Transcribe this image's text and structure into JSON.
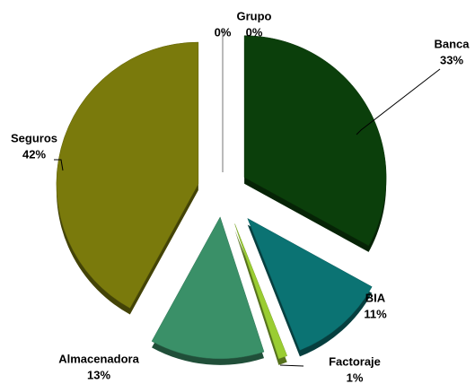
{
  "chart_data": {
    "type": "pie",
    "categories": [
      "Banca",
      "BIA",
      "Factoraje",
      "Almacenadora",
      "Seguros",
      null,
      "Grupo"
    ],
    "values": [
      33,
      11,
      1,
      13,
      42,
      0,
      0
    ],
    "value_labels": [
      "33%",
      "11%",
      "1%",
      "13%",
      "42%",
      "0%",
      "0%"
    ],
    "colors": [
      "#0b3f0b",
      "#0b7373",
      "#9acd32",
      "#3a9068",
      "#7a7a0c",
      "#888888",
      "#888888"
    ]
  }
}
